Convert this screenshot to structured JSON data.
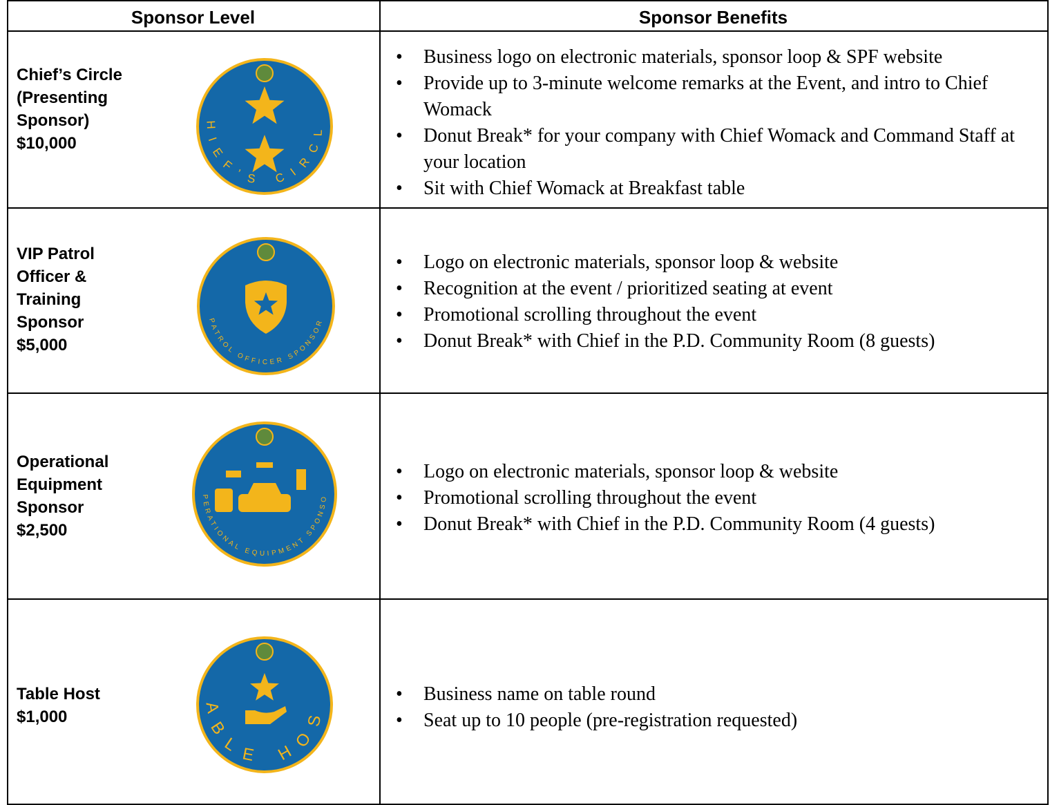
{
  "header": [
    "Sponsor Level",
    "Sponsor Benefits"
  ],
  "rows": [
    {
      "level": [
        "Chief’s Circle",
        "(Presenting",
        "Sponsor)",
        "$10,000"
      ],
      "badge_text": "CHIEF’S CIRCLE",
      "benefits": [
        "Business logo on electronic materials, sponsor loop & SPF website",
        "Provide up to 3-minute welcome remarks at the Event, and intro to Chief Womack",
        "Donut Break* for your company with Chief Womack and Command Staff at your location",
        "Sit with Chief Womack at Breakfast table"
      ]
    },
    {
      "level": [
        "VIP Patrol",
        "Officer &",
        "Training",
        "Sponsor",
        "$5,000"
      ],
      "badge_text": "PATROL OFFICER SPONSOR",
      "benefits": [
        "Logo on electronic materials, sponsor loop & website",
        "Recognition at the event / prioritized seating at event",
        "Promotional scrolling throughout the event",
        "Donut Break* with Chief in the P.D. Community Room (8 guests)"
      ]
    },
    {
      "level": [
        "Operational",
        "Equipment",
        "Sponsor",
        "$2,500"
      ],
      "badge_text": "OPERATIONAL EQUIPMENT SPONSOR",
      "benefits": [
        "Logo on electronic materials, sponsor loop & website",
        "Promotional scrolling throughout the event",
        "Donut Break* with Chief in the P.D. Community Room (4 guests)"
      ]
    },
    {
      "level": [
        "Table Host",
        "$1,000"
      ],
      "badge_text": "TABLE HOST",
      "benefits": [
        "Business name on table round",
        "Seat up to 10 people (pre-registration requested)"
      ]
    }
  ]
}
